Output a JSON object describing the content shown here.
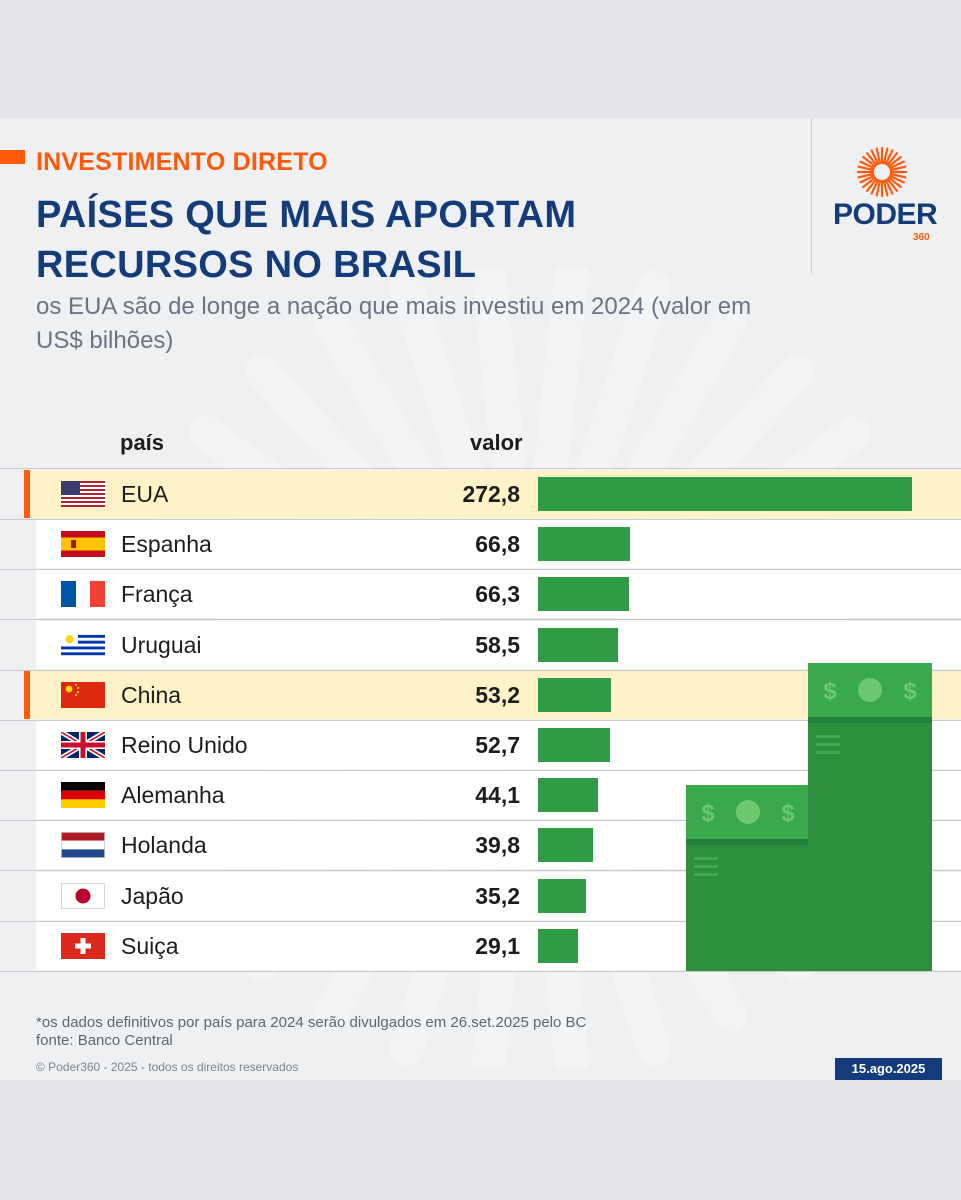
{
  "header": {
    "kicker": "INVESTIMENTO DIRETO",
    "title": "PAÍSES QUE MAIS APORTAM RECURSOS NO BRASIL",
    "subtitle": "os EUA são de longe a nação que mais investiu em 2024 (valor em US$ bilhões)"
  },
  "logo": {
    "name": "PODER",
    "number": "360",
    "icon": "sunburst-icon",
    "brand_color": "#ff5a0a"
  },
  "columns": {
    "country": "país",
    "value": "valor"
  },
  "colors": {
    "bar": "#2e9c44",
    "highlight": "#fff2c8",
    "accent": "#ff5a0a",
    "title": "#143c7a"
  },
  "chart_data": {
    "type": "bar",
    "orientation": "horizontal",
    "categories": [
      "EUA",
      "Espanha",
      "França",
      "Uruguai",
      "China",
      "Reino Unido",
      "Alemanha",
      "Holanda",
      "Japão",
      "Suiça"
    ],
    "values": [
      272.8,
      66.8,
      66.3,
      58.5,
      53.2,
      52.7,
      44.1,
      39.8,
      35.2,
      29.1
    ],
    "value_labels": [
      "272,8",
      "66,8",
      "66,3",
      "58,5",
      "53,2",
      "52,7",
      "44,1",
      "39,8",
      "35,2",
      "29,1"
    ],
    "highlighted": [
      "EUA",
      "China"
    ],
    "flags": [
      "us-flag-icon",
      "spain-flag-icon",
      "france-flag-icon",
      "uruguay-flag-icon",
      "china-flag-icon",
      "uk-flag-icon",
      "germany-flag-icon",
      "netherlands-flag-icon",
      "japan-flag-icon",
      "switzerland-flag-icon"
    ]
  },
  "footer": {
    "note": "*os dados definitivos por país para 2024 serão divulgados em 26.set.2025 pelo BC",
    "source": "fonte: Banco Central",
    "copyright": "© Poder360 - 2025 - todos os direitos reservados",
    "date": "15.ago.2025"
  },
  "decor": {
    "money_icon": "banknote-stack-icon",
    "currency_symbol": "$"
  }
}
